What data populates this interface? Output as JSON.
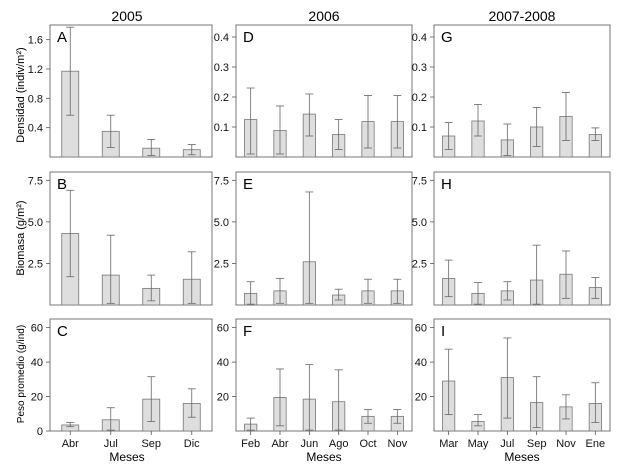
{
  "column_titles": [
    "2005",
    "2006",
    "2007-2008"
  ],
  "row_ylabels": [
    "Densidad (indiv/m²)",
    "Biomasa (g/m²)",
    "Peso promedio (g/ind)"
  ],
  "xlabel": "Meses",
  "colors": {
    "bar_fill": "#dedede",
    "bar_stroke": "#777777",
    "axis": "#555555"
  },
  "chart_data": [
    {
      "panel": "A",
      "type": "bar",
      "row": 0,
      "col": 0,
      "title": "2005",
      "categories": [
        "Abr",
        "Jul",
        "Sep",
        "Dic"
      ],
      "show_xticklabels": false,
      "ylim": [
        0,
        1.8
      ],
      "yticks": [
        0.4,
        0.8,
        1.2,
        1.6
      ],
      "yticklabels": [
        "0.4",
        "0.8",
        "1.2",
        "1.6"
      ],
      "values": [
        1.17,
        0.35,
        0.12,
        0.1
      ],
      "err_low": [
        0.57,
        0.13,
        0.02,
        0.03
      ],
      "err_high": [
        1.77,
        0.57,
        0.24,
        0.17
      ]
    },
    {
      "panel": "D",
      "type": "bar",
      "row": 0,
      "col": 1,
      "title": "2006",
      "categories": [
        "Feb",
        "Abr",
        "Jun",
        "Ago",
        "Oct",
        "Nov"
      ],
      "show_xticklabels": false,
      "ylim": [
        0,
        0.44
      ],
      "yticks": [
        0.1,
        0.2,
        0.3,
        0.4
      ],
      "yticklabels": [
        "0.1",
        "0.2",
        "0.3",
        "0.4"
      ],
      "values": [
        0.125,
        0.088,
        0.143,
        0.075,
        0.118,
        0.118
      ],
      "err_low": [
        0.01,
        0.01,
        0.07,
        0.025,
        0.03,
        0.03
      ],
      "err_high": [
        0.23,
        0.17,
        0.21,
        0.125,
        0.205,
        0.205
      ]
    },
    {
      "panel": "G",
      "type": "bar",
      "row": 0,
      "col": 2,
      "title": "2007-2008",
      "categories": [
        "Mar",
        "May",
        "Jul",
        "Sep",
        "Nov",
        "Ene"
      ],
      "show_xticklabels": false,
      "ylim": [
        0,
        0.44
      ],
      "yticks": [
        0.1,
        0.2,
        0.3,
        0.4
      ],
      "yticklabels": [
        "0.1",
        "0.2",
        "0.3",
        "0.4"
      ],
      "values": [
        0.07,
        0.12,
        0.057,
        0.1,
        0.135,
        0.075
      ],
      "err_low": [
        0.025,
        0.07,
        0.005,
        0.035,
        0.055,
        0.055
      ],
      "err_high": [
        0.115,
        0.175,
        0.11,
        0.165,
        0.215,
        0.097
      ]
    },
    {
      "panel": "B",
      "type": "bar",
      "row": 1,
      "col": 0,
      "categories": [
        "Abr",
        "Jul",
        "Sep",
        "Dic"
      ],
      "show_xticklabels": false,
      "ylim": [
        0,
        8
      ],
      "yticks": [
        2.5,
        5.0,
        7.5
      ],
      "yticklabels": [
        "2.5",
        "5.0",
        "7.5"
      ],
      "values": [
        4.3,
        1.8,
        1.0,
        1.55
      ],
      "err_low": [
        1.7,
        0.1,
        0.25,
        0.1
      ],
      "err_high": [
        6.9,
        4.2,
        1.8,
        3.2
      ]
    },
    {
      "panel": "E",
      "type": "bar",
      "row": 1,
      "col": 1,
      "categories": [
        "Feb",
        "Abr",
        "Jun",
        "Ago",
        "Oct",
        "Nov"
      ],
      "show_xticklabels": false,
      "ylim": [
        0,
        8
      ],
      "yticks": [
        2.5,
        5.0,
        7.5
      ],
      "yticklabels": [
        "2.5",
        "5.0",
        "7.5"
      ],
      "values": [
        0.7,
        0.85,
        2.6,
        0.6,
        0.85,
        0.85
      ],
      "err_low": [
        0.05,
        0.1,
        0.1,
        0.3,
        0.1,
        0.1
      ],
      "err_high": [
        1.4,
        1.6,
        6.8,
        0.95,
        1.55,
        1.55
      ]
    },
    {
      "panel": "H",
      "type": "bar",
      "row": 1,
      "col": 2,
      "categories": [
        "Mar",
        "May",
        "Jul",
        "Sep",
        "Nov",
        "Ene"
      ],
      "show_xticklabels": false,
      "ylim": [
        0,
        8
      ],
      "yticks": [
        2.5,
        5.0,
        7.5
      ],
      "yticklabels": [
        "2.5",
        "5.0",
        "7.5"
      ],
      "values": [
        1.6,
        0.7,
        0.85,
        1.5,
        1.85,
        1.05
      ],
      "err_low": [
        0.5,
        0.05,
        0.3,
        0.05,
        0.4,
        0.4
      ],
      "err_high": [
        2.7,
        1.35,
        1.4,
        3.6,
        3.25,
        1.65
      ]
    },
    {
      "panel": "C",
      "type": "bar",
      "row": 2,
      "col": 0,
      "categories": [
        "Abr",
        "Jul",
        "Sep",
        "Dic"
      ],
      "show_xticklabels": true,
      "ylim": [
        0,
        65
      ],
      "yticks": [
        0,
        20,
        40,
        60
      ],
      "yticklabels": [
        "0",
        "20",
        "40",
        "60"
      ],
      "values": [
        3.5,
        6.5,
        18.5,
        16
      ],
      "err_low": [
        2.5,
        0.5,
        5.5,
        8
      ],
      "err_high": [
        5,
        13.5,
        31.5,
        24.5
      ]
    },
    {
      "panel": "F",
      "type": "bar",
      "row": 2,
      "col": 1,
      "categories": [
        "Feb",
        "Abr",
        "Jun",
        "Ago",
        "Oct",
        "Nov"
      ],
      "show_xticklabels": true,
      "ylim": [
        0,
        65
      ],
      "yticks": [
        20,
        40,
        60
      ],
      "yticklabels": [
        "20",
        "40",
        "60"
      ],
      "values": [
        4,
        19.5,
        18.5,
        17,
        8.5,
        8.5
      ],
      "err_low": [
        0.5,
        3,
        0.5,
        0.5,
        4.5,
        4.5
      ],
      "err_high": [
        7.5,
        36,
        38.5,
        35.5,
        12.5,
        12.5
      ]
    },
    {
      "panel": "I",
      "type": "bar",
      "row": 2,
      "col": 2,
      "categories": [
        "Mar",
        "May",
        "Jul",
        "Sep",
        "Nov",
        "Ene"
      ],
      "show_xticklabels": true,
      "ylim": [
        0,
        65
      ],
      "yticks": [
        20,
        40,
        60
      ],
      "yticklabels": [
        "20",
        "40",
        "60"
      ],
      "values": [
        29,
        5.5,
        31,
        16.5,
        14,
        16
      ],
      "err_low": [
        9.5,
        3,
        7.5,
        2,
        7,
        5
      ],
      "err_high": [
        47.5,
        9.5,
        54,
        31.5,
        21,
        28
      ]
    }
  ]
}
